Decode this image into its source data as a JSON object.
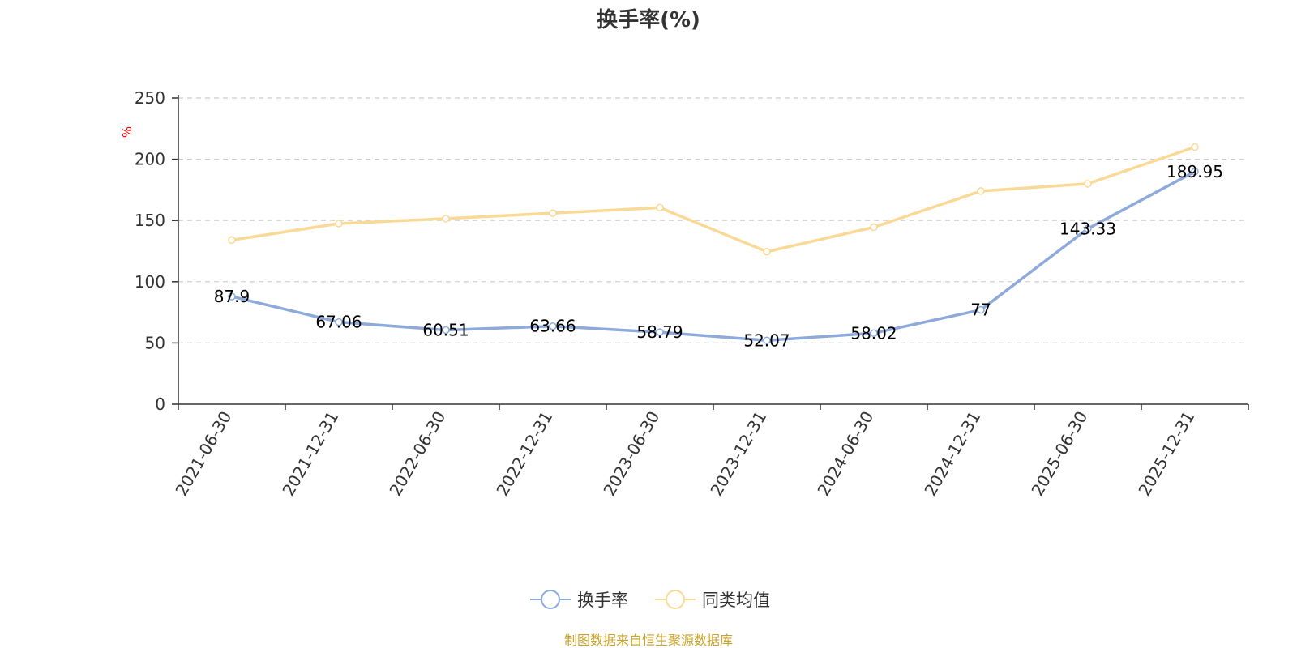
{
  "chart_data": {
    "type": "line",
    "title": "换手率(%)",
    "ylabel": "%",
    "xlabel": "",
    "ylim": [
      0,
      250
    ],
    "yticks": [
      0,
      50,
      100,
      150,
      200,
      250
    ],
    "grid": "horizontal-dashed",
    "categories": [
      "2021-06-30",
      "2021-12-31",
      "2022-06-30",
      "2022-12-31",
      "2023-06-30",
      "2023-12-31",
      "2024-06-30",
      "2024-12-31",
      "2025-06-30",
      "2025-12-31"
    ],
    "series": [
      {
        "name": "换手率",
        "color": "#8eaadb",
        "show_labels": true,
        "values": [
          87.9,
          67.06,
          60.51,
          63.66,
          58.79,
          52.07,
          58.02,
          77,
          143.33,
          189.95
        ],
        "labels": [
          "87.9",
          "67.06",
          "60.51",
          "63.66",
          "58.79",
          "52.07",
          "58.02",
          "77",
          "143.33",
          "189.95"
        ]
      },
      {
        "name": "同类均值",
        "color": "#fad996",
        "show_labels": false,
        "values": [
          134,
          147.5,
          151.5,
          156,
          160.5,
          124.5,
          144.5,
          174,
          180,
          210
        ]
      }
    ],
    "legend_position": "bottom-center"
  },
  "colors": {
    "title": "#333333",
    "axis": "#333333",
    "grid": "#cccccc",
    "unit_label": "#ff0000",
    "source": "#c9a227"
  },
  "source_note": "制图数据来自恒生聚源数据库"
}
